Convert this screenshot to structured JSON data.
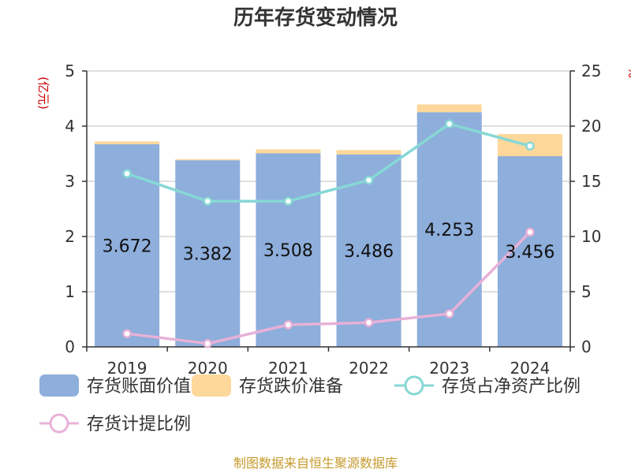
{
  "chart_data": {
    "type": "bar",
    "title": "历年存货变动情况",
    "y_unit_left": "(亿元)",
    "y_unit_right": "%",
    "categories": [
      "2019",
      "2020",
      "2021",
      "2022",
      "2023",
      "2024"
    ],
    "ylim_left": [
      0,
      5
    ],
    "yticks_left": [
      "0",
      "1",
      "2",
      "3",
      "4",
      "5"
    ],
    "ylim_right": [
      0,
      25
    ],
    "yticks_right": [
      "0",
      "5",
      "10",
      "15",
      "20",
      "25"
    ],
    "grid": true,
    "stacked": true,
    "series": [
      {
        "name": "存货账面价值",
        "kind": "bar",
        "axis": "left",
        "color": "#8eaedb",
        "values": [
          3.672,
          3.382,
          3.508,
          3.486,
          4.253,
          3.456
        ],
        "labels": [
          "3.672",
          "3.382",
          "3.508",
          "3.486",
          "4.253",
          "3.456"
        ]
      },
      {
        "name": "存货跌价准备",
        "kind": "bar",
        "axis": "left",
        "color": "#fdd89a",
        "values": [
          0.05,
          0.02,
          0.07,
          0.08,
          0.14,
          0.4
        ]
      },
      {
        "name": "存货占净资产比例",
        "kind": "line",
        "axis": "right",
        "color": "#86d8d5",
        "values": [
          15.7,
          13.2,
          13.2,
          15.1,
          20.2,
          18.2
        ]
      },
      {
        "name": "存货计提比例",
        "kind": "line",
        "axis": "right",
        "color": "#e8b1d8",
        "values": [
          1.2,
          0.3,
          2.0,
          2.2,
          3.0,
          10.4
        ]
      }
    ],
    "legend_position": "bottom"
  },
  "footer": {
    "source": "制图数据来自恒生聚源数据库"
  }
}
